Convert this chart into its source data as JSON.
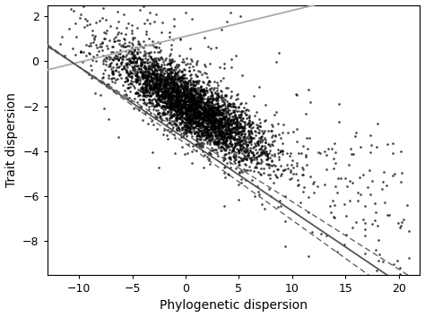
{
  "xlabel": "Phylogenetic dispersion",
  "ylabel": "Trait dispersion",
  "xlim": [
    -13,
    22
  ],
  "ylim": [
    -9.5,
    2.5
  ],
  "xticks": [
    -10,
    -5,
    0,
    5,
    10,
    15,
    20
  ],
  "yticks": [
    -8,
    -6,
    -4,
    -2,
    0,
    2
  ],
  "scatter_color": "#000000",
  "scatter_size": 3.5,
  "scatter_alpha": 0.75,
  "n_points": 4000,
  "seed": 42,
  "reg_line_color": "#555555",
  "ci_line_color": "#555555",
  "null_line_color": "#aaaaaa",
  "convergence_x": -10.5,
  "convergence_y": -0.1,
  "reg_slope": -0.32,
  "null_slope": 0.115,
  "ci_slope_upper": -0.3,
  "ci_slope_lower": -0.34,
  "xlabel_fontsize": 10,
  "ylabel_fontsize": 10,
  "tick_fontsize": 9
}
